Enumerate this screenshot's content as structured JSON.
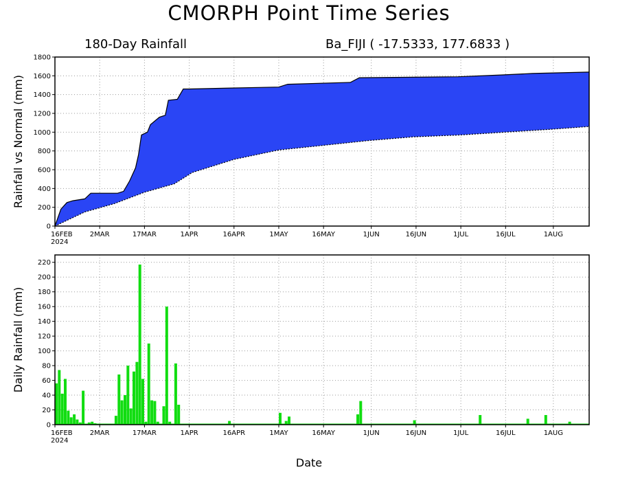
{
  "title": "CMORPH Point Time Series",
  "subtitle_left": "180-Day Rainfall",
  "subtitle_right": "Ba_FIJI ( -17.5333, 177.6833 )",
  "xlabel": "Date",
  "colors": {
    "accum_fill": "#2a45f5",
    "daily_bar": "#11dd11",
    "grid": "#9a9a9a"
  },
  "x_ticks": [
    {
      "date": "2024-02-16",
      "label": "16FEB",
      "year": "2024"
    },
    {
      "date": "2024-03-02",
      "label": "2MAR"
    },
    {
      "date": "2024-03-17",
      "label": "17MAR"
    },
    {
      "date": "2024-04-01",
      "label": "1APR"
    },
    {
      "date": "2024-04-16",
      "label": "16APR"
    },
    {
      "date": "2024-05-01",
      "label": "1MAY"
    },
    {
      "date": "2024-05-16",
      "label": "16MAY"
    },
    {
      "date": "2024-06-01",
      "label": "1JUN"
    },
    {
      "date": "2024-06-16",
      "label": "16JUN"
    },
    {
      "date": "2024-07-01",
      "label": "1JUL"
    },
    {
      "date": "2024-07-16",
      "label": "16JUL"
    },
    {
      "date": "2024-08-01",
      "label": "1AUG"
    }
  ],
  "chart_data": [
    {
      "type": "area",
      "ylabel": "Rainfall vs Normal (mm)",
      "xlim": [
        "2024-02-16",
        "2024-08-13"
      ],
      "ylim": [
        0,
        1800
      ],
      "yticks": [
        0,
        200,
        400,
        600,
        800,
        1000,
        1200,
        1400,
        1600,
        1800
      ],
      "grid": true,
      "series": [
        {
          "x": [
            "2024-02-16",
            "2024-02-18",
            "2024-02-20",
            "2024-02-22",
            "2024-02-26",
            "2024-02-28",
            "2024-03-08",
            "2024-03-10",
            "2024-03-12",
            "2024-03-14",
            "2024-03-15",
            "2024-03-16",
            "2024-03-18",
            "2024-03-19",
            "2024-03-22",
            "2024-03-24",
            "2024-03-25",
            "2024-03-28",
            "2024-03-30",
            "2024-04-01",
            "2024-04-15",
            "2024-05-01",
            "2024-05-04",
            "2024-05-25",
            "2024-05-28",
            "2024-06-30",
            "2024-07-15",
            "2024-07-25",
            "2024-08-13"
          ],
          "values": [
            0,
            180,
            250,
            270,
            290,
            350,
            350,
            370,
            480,
            620,
            760,
            970,
            1000,
            1080,
            1160,
            1180,
            1340,
            1350,
            1460,
            1460,
            1470,
            1480,
            1510,
            1530,
            1580,
            1590,
            1610,
            1625,
            1640
          ]
        },
        {
          "x": [
            "2024-02-16",
            "2024-02-26",
            "2024-03-07",
            "2024-03-17",
            "2024-03-27",
            "2024-04-02",
            "2024-04-16",
            "2024-05-01",
            "2024-05-16",
            "2024-05-31",
            "2024-06-15",
            "2024-07-01",
            "2024-07-16",
            "2024-07-31",
            "2024-08-13"
          ],
          "values": [
            0,
            150,
            240,
            360,
            450,
            570,
            710,
            810,
            860,
            910,
            950,
            970,
            1000,
            1030,
            1060
          ]
        }
      ]
    },
    {
      "type": "bar",
      "ylabel": "Daily Rainfall (mm)",
      "xlim": [
        "2024-02-16",
        "2024-08-13"
      ],
      "ylim": [
        0,
        230
      ],
      "yticks": [
        0,
        20,
        40,
        60,
        80,
        100,
        120,
        140,
        160,
        180,
        200,
        220
      ],
      "grid": true,
      "x": [
        "2024-02-16",
        "2024-02-17",
        "2024-02-18",
        "2024-02-19",
        "2024-02-20",
        "2024-02-21",
        "2024-02-22",
        "2024-02-23",
        "2024-02-24",
        "2024-02-25",
        "2024-02-27",
        "2024-02-28",
        "2024-02-29",
        "2024-03-07",
        "2024-03-08",
        "2024-03-09",
        "2024-03-10",
        "2024-03-11",
        "2024-03-12",
        "2024-03-13",
        "2024-03-14",
        "2024-03-15",
        "2024-03-16",
        "2024-03-17",
        "2024-03-18",
        "2024-03-19",
        "2024-03-20",
        "2024-03-21",
        "2024-03-23",
        "2024-03-24",
        "2024-03-25",
        "2024-03-27",
        "2024-03-28",
        "2024-04-14",
        "2024-05-01",
        "2024-05-03",
        "2024-05-04",
        "2024-05-27",
        "2024-05-28",
        "2024-06-15",
        "2024-07-07",
        "2024-07-23",
        "2024-07-29",
        "2024-08-06"
      ],
      "values": [
        56,
        74,
        42,
        62,
        19,
        10,
        14,
        7,
        3,
        46,
        3,
        4,
        2,
        12,
        68,
        33,
        40,
        80,
        22,
        72,
        85,
        217,
        62,
        4,
        110,
        33,
        32,
        4,
        25,
        160,
        4,
        83,
        27,
        5,
        16,
        5,
        11,
        14,
        32,
        6,
        13,
        8,
        13,
        4
      ]
    }
  ]
}
